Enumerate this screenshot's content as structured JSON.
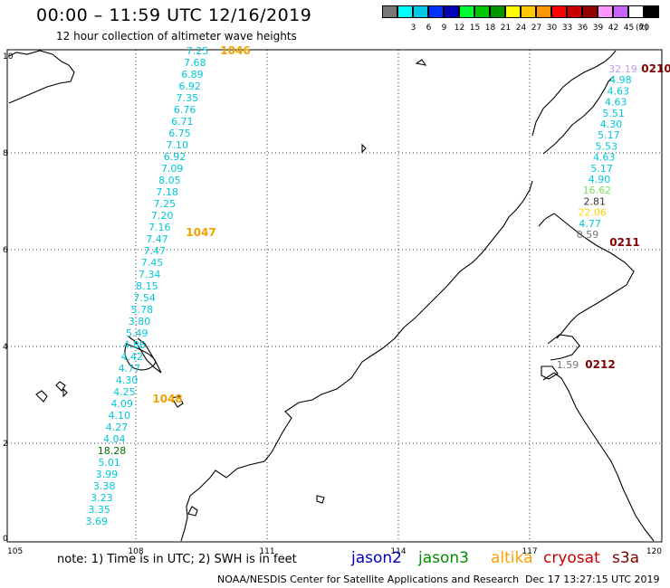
{
  "header": {
    "title": "00:00 – 11:59 UTC 12/16/2019",
    "subtitle": "12 hour collection of altimeter wave heights"
  },
  "legend": {
    "unit": "(ft)",
    "items": [
      {
        "label": "",
        "color": "#777777"
      },
      {
        "label": "3",
        "color": "#00ffff"
      },
      {
        "label": "6",
        "color": "#00c8e6"
      },
      {
        "label": "9",
        "color": "#0032ff"
      },
      {
        "label": "12",
        "color": "#0000b4"
      },
      {
        "label": "15",
        "color": "#00ff32"
      },
      {
        "label": "18",
        "color": "#00c800"
      },
      {
        "label": "21",
        "color": "#009600"
      },
      {
        "label": "24",
        "color": "#ffff00"
      },
      {
        "label": "27",
        "color": "#ffc800"
      },
      {
        "label": "30",
        "color": "#ff9600"
      },
      {
        "label": "33",
        "color": "#ff0000"
      },
      {
        "label": "36",
        "color": "#c80000"
      },
      {
        "label": "39",
        "color": "#960000"
      },
      {
        "label": "42",
        "color": "#ff96ff"
      },
      {
        "label": "45",
        "color": "#c864ff"
      },
      {
        "label": "70",
        "color": "#ffffff"
      },
      {
        "label": "",
        "color": "#000000"
      }
    ]
  },
  "map": {
    "x_ticks": [
      "105",
      "108",
      "111",
      "114",
      "117",
      "120"
    ],
    "y_ticks": [
      "0",
      "2",
      "4",
      "6",
      "8",
      "10"
    ],
    "track_labels": [
      {
        "text": "1046",
        "color": "#f0a000"
      },
      {
        "text": "1047",
        "color": "#f0a000"
      },
      {
        "text": "1048",
        "color": "#f0a000"
      },
      {
        "text": "0210",
        "color": "#800000"
      },
      {
        "text": "0211",
        "color": "#800000"
      },
      {
        "text": "0212",
        "color": "#800000"
      }
    ],
    "track1_values": [
      "7.25",
      "7.68",
      "6.89",
      "6.92",
      "7.35",
      "6.76",
      "6.71",
      "6.75",
      "7.10",
      "6.92",
      "7.09",
      "8.05",
      "7.18",
      "7.25",
      "7.20",
      "7.16",
      "7.47",
      "7.47",
      "7.45",
      "7.34",
      "8.15",
      "7.54",
      "5.78",
      "3.80",
      "5.49",
      "4.86",
      "4.42",
      "4.77",
      "4.30",
      "4.25",
      "4.09",
      "4.10",
      "4.27",
      "4.04",
      "18.28",
      "5.01",
      "3.99",
      "3.38",
      "3.23",
      "3.35",
      "3.69"
    ],
    "track2_values": [
      "32.19",
      "4.98",
      "4.63",
      "4.63",
      "5.51",
      "4.30",
      "5.17",
      "5.53",
      "4.63",
      "5.17",
      "4.90",
      "16.62",
      "2.81",
      "22.06",
      "4.77",
      "0.59"
    ],
    "track2_colors": [
      "#c0a0e0",
      "#00c8d8",
      "#00c8d8",
      "#00c8d8",
      "#00c8d8",
      "#00c8d8",
      "#00c8d8",
      "#00c8d8",
      "#00c8d8",
      "#00c8d8",
      "#00c8d8",
      "#80e060",
      "#333333",
      "#ffd700",
      "#00c8d8",
      "#777777"
    ],
    "track3_values": [
      "1.59"
    ]
  },
  "footer": {
    "note": "note:  1) Time is in UTC;  2) SWH is in feet",
    "satellites": [
      {
        "name": "jason2",
        "color": "#0000c8"
      },
      {
        "name": "jason3",
        "color": "#008c00"
      },
      {
        "name": "altika",
        "color": "#ffa000"
      },
      {
        "name": "cryosat",
        "color": "#c80000"
      },
      {
        "name": "s3a",
        "color": "#800000"
      }
    ],
    "credit": "NOAA/NESDIS Center for Satellite Applications and Research",
    "timestamp": "Dec 17 13:27:15 UTC 2019"
  }
}
